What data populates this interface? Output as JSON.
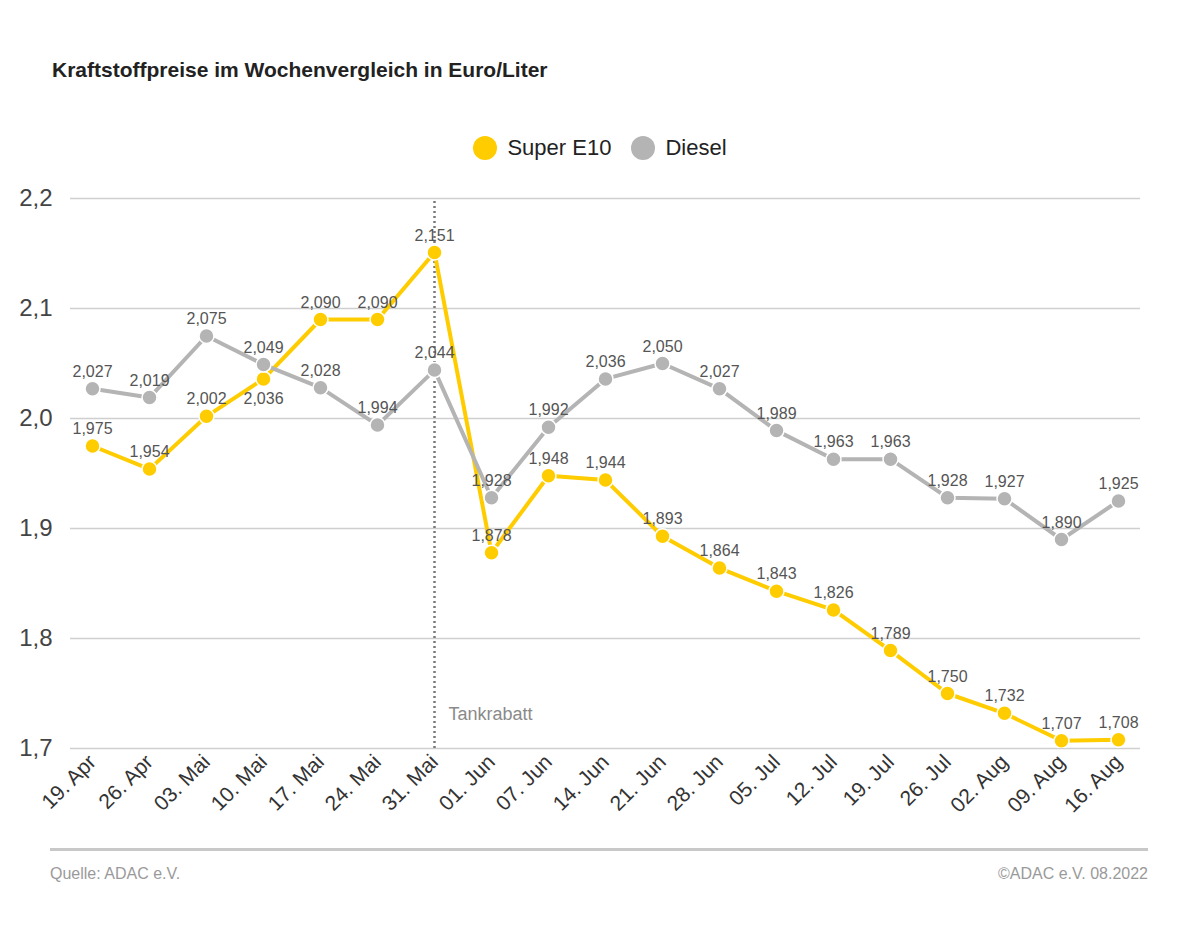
{
  "chart_data": {
    "type": "line",
    "title": "Kraftstoffpreise im Wochenvergleich in Euro/Liter",
    "source": "Quelle: ADAC e.V.",
    "credit": "©ADAC e.V.  08.2022",
    "categories": [
      "19. Apr",
      "26. Apr",
      "03. Mai",
      "10. Mai",
      "17. Mai",
      "24. Mai",
      "31. Mai",
      "01. Jun",
      "07. Jun",
      "14. Jun",
      "21. Jun",
      "28. Jun",
      "05. Jul",
      "12. Jul",
      "19. Jul",
      "26. Jul",
      "02. Aug",
      "09. Aug",
      "16. Aug"
    ],
    "series": [
      {
        "name": "Super E10",
        "color": "#ffcc00",
        "marker": "circle",
        "values": [
          1.975,
          1.954,
          2.002,
          2.036,
          2.09,
          2.09,
          2.151,
          1.878,
          1.948,
          1.944,
          1.893,
          1.864,
          1.843,
          1.826,
          1.789,
          1.75,
          1.732,
          1.707,
          1.708
        ],
        "value_labels": [
          "1,975",
          "1,954",
          "2,002",
          "2,036",
          "2,090",
          "2,090",
          "2,151",
          "1,878",
          "1,948",
          "1,944",
          "1,893",
          "1,864",
          "1,843",
          "1,826",
          "1,789",
          "1,750",
          "1,732",
          "1,707",
          "1,708"
        ]
      },
      {
        "name": "Diesel",
        "color": "#b4b4b4",
        "marker": "circle",
        "values": [
          2.027,
          2.019,
          2.075,
          2.049,
          2.028,
          1.994,
          2.044,
          1.928,
          1.992,
          2.036,
          2.05,
          2.027,
          1.989,
          1.963,
          1.963,
          1.928,
          1.927,
          1.89,
          1.925
        ],
        "value_labels": [
          "2,027",
          "2,019",
          "2,075",
          "2,049",
          "2,028",
          "1,994",
          "2,044",
          "1,928",
          "1,992",
          "2,036",
          "2,050",
          "2,027",
          "1,989",
          "1,963",
          "1,963",
          "1,928",
          "1,927",
          "1,890",
          "1,925"
        ]
      }
    ],
    "ylim": [
      1.7,
      2.2
    ],
    "yticks": [
      {
        "value": 1.7,
        "label": "1,7"
      },
      {
        "value": 1.8,
        "label": "1,8"
      },
      {
        "value": 1.9,
        "label": "1,9"
      },
      {
        "value": 2.0,
        "label": "2,0"
      },
      {
        "value": 2.1,
        "label": "2,1"
      },
      {
        "value": 2.2,
        "label": "2,2"
      }
    ],
    "grid": true,
    "legend": "top",
    "data_labels": true,
    "annotations": [
      {
        "text": "Tankrabatt",
        "x": "31. Mai",
        "line_style": "dotted"
      }
    ]
  }
}
